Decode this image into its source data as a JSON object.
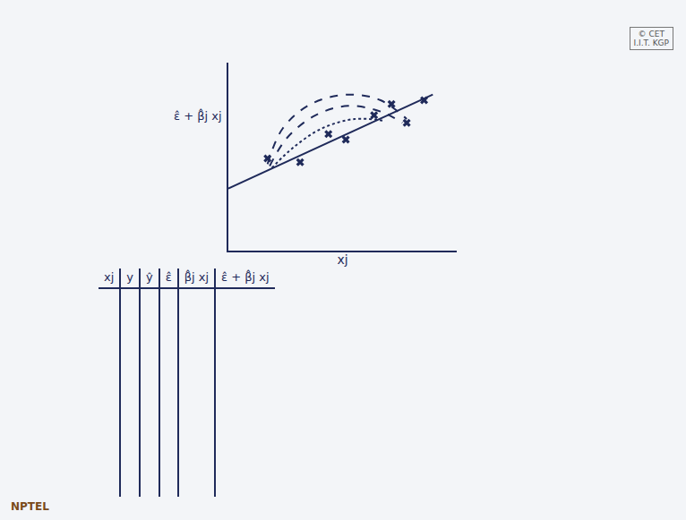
{
  "chart_data": {
    "type": "scatter",
    "x_label": "xj",
    "y_label": "ε̂ + β̂j xj",
    "xlim": [
      0,
      10.5
    ],
    "ylim": [
      0,
      10
    ],
    "tick_labels": false,
    "grid": false,
    "color": "#1f2a5a",
    "series": [
      {
        "type": "scatter",
        "marker": "x",
        "x": [
          1.8,
          3.3,
          4.6,
          5.4,
          6.7,
          7.5,
          8.2,
          9.0
        ],
        "values": [
          4.9,
          4.7,
          6.2,
          5.9,
          7.2,
          7.8,
          6.8,
          8.0
        ]
      },
      {
        "type": "line",
        "line_style": "solid",
        "x": [
          0,
          9.4
        ],
        "values": [
          3.3,
          8.3
        ]
      },
      {
        "type": "line",
        "line_style": "dash",
        "x": [
          1.8,
          2.5,
          3.8,
          5.5,
          7.0,
          8.2
        ],
        "values": [
          4.6,
          6.5,
          7.8,
          8.3,
          8.0,
          7.0
        ]
      },
      {
        "type": "line",
        "line_style": "dash",
        "x": [
          1.9,
          2.7,
          4.0,
          5.5,
          7.0,
          8.0
        ],
        "values": [
          4.5,
          6.0,
          7.2,
          7.7,
          7.4,
          6.8
        ]
      },
      {
        "type": "line",
        "line_style": "dot",
        "x": [
          2.0,
          3.0,
          4.3,
          5.8,
          7.2
        ],
        "values": [
          4.4,
          5.5,
          6.5,
          7.0,
          6.9
        ]
      }
    ]
  },
  "table": {
    "header": [
      "xj",
      "y",
      "ŷ",
      "ε̂",
      "β̂j xj",
      "ε̂ + β̂j xj"
    ]
  },
  "corner_label": "© CET\nI.I.T. KGP",
  "logo": "NPTEL"
}
